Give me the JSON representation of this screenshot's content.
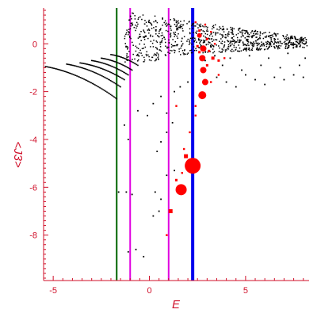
{
  "chart_data": {
    "type": "scatter",
    "title": "",
    "xlabel": "E",
    "ylabel": "<J3>",
    "xlim": [
      -5.5,
      8.3
    ],
    "ylim": [
      -9.9,
      1.5
    ],
    "x_ticks": [
      -5,
      0,
      5
    ],
    "x_tick_labels": [
      "-5",
      "0",
      "5"
    ],
    "y_ticks": [
      0,
      -2,
      -4,
      -6,
      -8
    ],
    "y_tick_labels": [
      "0",
      "-2",
      "-4",
      "-6",
      "-8"
    ],
    "grid": false,
    "colors": {
      "axis": "#d0102a",
      "points": "#000000",
      "highlight": "#ff0000",
      "line_green": "#006400",
      "line_magenta": "#e000e0",
      "line_blue": "#0000ee"
    },
    "vertical_lines": [
      {
        "x": -1.7,
        "color": "#006400",
        "width": "thin"
      },
      {
        "x": -1.0,
        "color": "#e000e0",
        "width": "thin"
      },
      {
        "x": 1.0,
        "color": "#e000e0",
        "width": "thin"
      },
      {
        "x": 2.25,
        "color": "#0000ee",
        "width": "thick"
      }
    ],
    "black_points": {
      "description_free": true,
      "left_curves": [
        {
          "x_start": -5.4,
          "x_end": -1.7,
          "y_start": -0.95,
          "y_end": -2.3,
          "n": 60
        },
        {
          "x_start": -4.3,
          "x_end": -1.5,
          "y_start": -0.85,
          "y_end": -1.8,
          "n": 45
        },
        {
          "x_start": -3.6,
          "x_end": -1.3,
          "y_start": -0.8,
          "y_end": -1.5,
          "n": 38
        },
        {
          "x_start": -3.0,
          "x_end": -1.1,
          "y_start": -0.7,
          "y_end": -1.3,
          "n": 32
        },
        {
          "x_start": -2.5,
          "x_end": -0.9,
          "y_start": -0.6,
          "y_end": -1.1,
          "n": 28
        },
        {
          "x_start": -2.0,
          "x_end": -0.6,
          "y_start": -0.45,
          "y_end": -0.9,
          "n": 24
        }
      ],
      "cloud": {
        "x_range": [
          -1.3,
          8.2
        ],
        "y_top_range": [
          0.0,
          1.4
        ],
        "n": 900
      },
      "scattered": [
        [
          -1.6,
          -6.2
        ],
        [
          -1.2,
          -6.2
        ],
        [
          -0.9,
          -6.3
        ],
        [
          -1.1,
          -8.7
        ],
        [
          -0.7,
          -8.6
        ],
        [
          -0.3,
          -8.9
        ],
        [
          0.2,
          -7.2
        ],
        [
          0.5,
          -7.0
        ],
        [
          0.3,
          -6.2
        ],
        [
          0.6,
          -6.5
        ],
        [
          0.9,
          -5.5
        ],
        [
          1.3,
          -5.3
        ],
        [
          -1.3,
          -3.4
        ],
        [
          -1.1,
          -4.0
        ],
        [
          0.4,
          -4.5
        ],
        [
          0.6,
          -4.1
        ],
        [
          0.9,
          -3.7
        ],
        [
          1.2,
          -3.3
        ],
        [
          -0.6,
          -2.8
        ],
        [
          0.2,
          -2.5
        ],
        [
          0.6,
          -2.2
        ],
        [
          1.3,
          -2.0
        ],
        [
          1.6,
          -1.8
        ],
        [
          2.0,
          -1.6
        ],
        [
          3.5,
          -1.4
        ],
        [
          4.0,
          -1.6
        ],
        [
          4.5,
          -1.8
        ],
        [
          5.0,
          -1.3
        ],
        [
          5.5,
          -1.5
        ],
        [
          6.0,
          -1.7
        ],
        [
          6.5,
          -1.4
        ],
        [
          7.0,
          -1.5
        ],
        [
          7.5,
          -1.3
        ],
        [
          8.0,
          -1.4
        ],
        [
          3.8,
          -0.9
        ],
        [
          4.8,
          -1.1
        ],
        [
          5.8,
          -0.9
        ],
        [
          6.8,
          -1.0
        ],
        [
          7.8,
          -0.9
        ],
        [
          2.9,
          -0.7
        ],
        [
          3.4,
          -0.5
        ],
        [
          4.2,
          -0.6
        ],
        [
          5.2,
          -0.5
        ],
        [
          6.2,
          -0.6
        ],
        [
          7.2,
          -0.4
        ],
        [
          8.1,
          -0.6
        ],
        [
          -0.1,
          -3.0
        ],
        [
          0.9,
          -2.9
        ]
      ]
    },
    "red_points": [
      {
        "x": 2.25,
        "y": -5.1,
        "size": 10
      },
      {
        "x": 1.65,
        "y": -6.1,
        "size": 7
      },
      {
        "x": 2.75,
        "y": -2.15,
        "size": 5
      },
      {
        "x": 2.9,
        "y": -1.6,
        "size": 4
      },
      {
        "x": 2.8,
        "y": -1.1,
        "size": 4
      },
      {
        "x": 2.75,
        "y": -0.6,
        "size": 4
      },
      {
        "x": 2.8,
        "y": -0.2,
        "size": 4
      },
      {
        "x": 2.6,
        "y": 0.35,
        "size": 3
      },
      {
        "x": 1.9,
        "y": -4.7,
        "size": 2.5
      },
      {
        "x": 1.1,
        "y": -7.0,
        "size": 2.5
      },
      {
        "x": 0.9,
        "y": -8.0,
        "size": 1.2
      },
      {
        "x": 1.7,
        "y": -5.4,
        "size": 1.2
      },
      {
        "x": 1.4,
        "y": -5.7,
        "size": 1.5
      },
      {
        "x": 1.8,
        "y": -4.4,
        "size": 1.2
      },
      {
        "x": 2.1,
        "y": -3.7,
        "size": 1.2
      },
      {
        "x": 2.4,
        "y": -3.0,
        "size": 1.2
      },
      {
        "x": 1.4,
        "y": -2.6,
        "size": 1.2
      },
      {
        "x": 3.0,
        "y": -0.9,
        "size": 1.5
      },
      {
        "x": 3.3,
        "y": -0.6,
        "size": 2
      },
      {
        "x": 3.6,
        "y": -0.7,
        "size": 1.5
      },
      {
        "x": 3.1,
        "y": -0.3,
        "size": 1.5
      },
      {
        "x": 3.4,
        "y": 0.0,
        "size": 1.2
      },
      {
        "x": 3.0,
        "y": 0.2,
        "size": 1.5
      },
      {
        "x": 2.6,
        "y": 0.55,
        "size": 1.5
      },
      {
        "x": 3.2,
        "y": 0.5,
        "size": 1.2
      },
      {
        "x": 2.9,
        "y": 0.8,
        "size": 1.2
      },
      {
        "x": 2.4,
        "y": 0.9,
        "size": 1.2
      },
      {
        "x": 2.5,
        "y": -0.1,
        "size": 1.5
      },
      {
        "x": 2.6,
        "y": -0.35,
        "size": 1.5
      },
      {
        "x": 3.6,
        "y": -1.3,
        "size": 1.2
      },
      {
        "x": 3.9,
        "y": -0.6,
        "size": 1.2
      },
      {
        "x": 3.2,
        "y": -1.6,
        "size": 1.2
      },
      {
        "x": 2.4,
        "y": -2.6,
        "size": 1.2
      }
    ]
  }
}
